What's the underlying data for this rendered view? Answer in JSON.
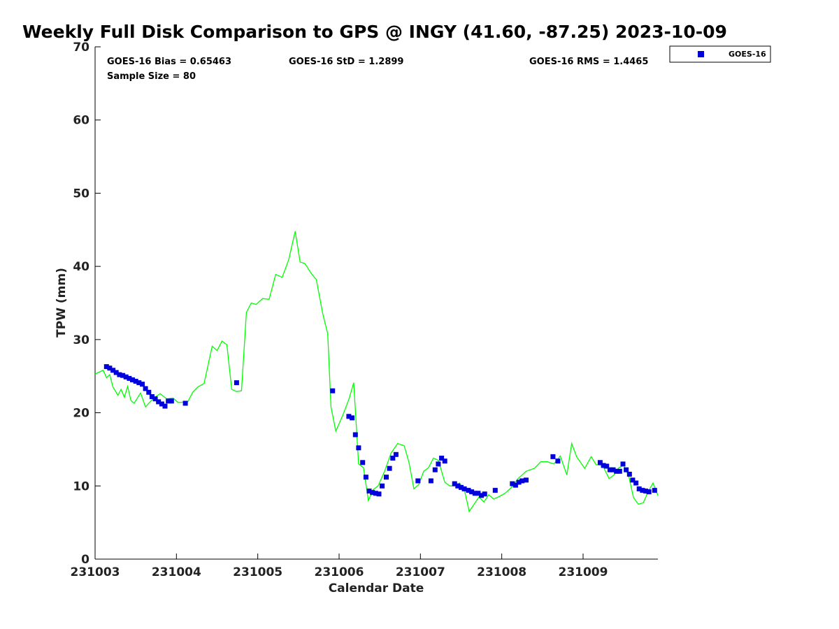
{
  "chart_data": {
    "type": "scatter",
    "title": "Weekly Full Disk Comparison to GPS @ INGY (41.60, -87.25) 2023-10-09",
    "xlabel": "Calendar Date",
    "ylabel": "TPW (mm)",
    "xlim": [
      231003,
      231009.92
    ],
    "ylim": [
      0,
      70
    ],
    "x_ticks": [
      231003,
      231004,
      231005,
      231006,
      231007,
      231008,
      231009
    ],
    "x_tick_labels": [
      "231003",
      "231004",
      "231005",
      "231006",
      "231007",
      "231008",
      "231009"
    ],
    "y_ticks": [
      0,
      10,
      20,
      30,
      40,
      50,
      60,
      70
    ],
    "grid": false,
    "legend_position": "top-right",
    "stats": {
      "bias": "GOES-16 Bias = 0.65463",
      "std": "GOES-16 StD = 1.2899",
      "rms": "GOES-16 RMS = 1.4465",
      "sample": "Sample Size = 80"
    },
    "series": [
      {
        "name": "GOES-16",
        "marker": "square",
        "color": "#0000dd",
        "x": [
          231003.14,
          231003.18,
          231003.22,
          231003.26,
          231003.3,
          231003.34,
          231003.38,
          231003.42,
          231003.46,
          231003.5,
          231003.54,
          231003.58,
          231003.62,
          231003.66,
          231003.7,
          231003.74,
          231003.78,
          231003.82,
          231003.86,
          231003.9,
          231003.94,
          231004.11,
          231004.74,
          231005.92,
          231006.12,
          231006.16,
          231006.2,
          231006.24,
          231006.29,
          231006.33,
          231006.37,
          231006.41,
          231006.45,
          231006.49,
          231006.53,
          231006.58,
          231006.62,
          231006.66,
          231006.7,
          231006.97,
          231007.13,
          231007.18,
          231007.22,
          231007.26,
          231007.3,
          231007.42,
          231007.46,
          231007.5,
          231007.54,
          231007.59,
          231007.63,
          231007.67,
          231007.71,
          231007.75,
          231007.79,
          231007.92,
          231008.13,
          231008.17,
          231008.21,
          231008.25,
          231008.3,
          231008.63,
          231008.69,
          231009.21,
          231009.25,
          231009.29,
          231009.33,
          231009.37,
          231009.41,
          231009.45,
          231009.49,
          231009.53,
          231009.57,
          231009.61,
          231009.65,
          231009.69,
          231009.73,
          231009.77,
          231009.81,
          231009.88
        ],
        "y": [
          26.3,
          26.1,
          25.8,
          25.5,
          25.2,
          25.1,
          24.9,
          24.7,
          24.5,
          24.3,
          24.1,
          23.9,
          23.3,
          22.8,
          22.2,
          21.9,
          21.5,
          21.2,
          20.9,
          21.6,
          21.6,
          21.3,
          24.1,
          23.0,
          19.5,
          19.3,
          17.0,
          15.2,
          13.2,
          11.2,
          9.3,
          9.1,
          9.0,
          8.9,
          10.0,
          11.2,
          12.4,
          13.8,
          14.3,
          10.7,
          10.7,
          12.2,
          13.0,
          13.8,
          13.4,
          10.3,
          10.0,
          9.8,
          9.6,
          9.4,
          9.2,
          9.0,
          9.0,
          8.7,
          8.9,
          9.4,
          10.3,
          10.1,
          10.5,
          10.7,
          10.8,
          14.0,
          13.4,
          13.2,
          12.8,
          12.7,
          12.2,
          12.2,
          12.0,
          12.0,
          13.0,
          12.2,
          11.6,
          10.8,
          10.4,
          9.6,
          9.4,
          9.3,
          9.2,
          9.4
        ]
      },
      {
        "name": "",
        "color": "#00ff00",
        "x": [
          231003.0,
          231003.1,
          231003.14,
          231003.18,
          231003.22,
          231003.28,
          231003.32,
          231003.36,
          231003.4,
          231003.44,
          231003.48,
          231003.56,
          231003.62,
          231003.72,
          231003.8,
          231003.88,
          231003.96,
          231004.02,
          231004.14,
          231004.2,
          231004.26,
          231004.34,
          231004.44,
          231004.5,
          231004.56,
          231004.62,
          231004.68,
          231004.74,
          231004.8,
          231004.86,
          231004.92,
          231004.98,
          231005.06,
          231005.14,
          231005.22,
          231005.3,
          231005.38,
          231005.46,
          231005.52,
          231005.58,
          231005.66,
          231005.72,
          231005.8,
          231005.86,
          231005.9,
          231005.96,
          231006.04,
          231006.12,
          231006.18,
          231006.24,
          231006.3,
          231006.36,
          231006.42,
          231006.48,
          231006.56,
          231006.64,
          231006.72,
          231006.8,
          231006.86,
          231006.92,
          231006.98,
          231007.04,
          231007.1,
          231007.16,
          231007.22,
          231007.3,
          231007.36,
          231007.42,
          231007.48,
          231007.54,
          231007.6,
          231007.66,
          231007.72,
          231007.78,
          231007.84,
          231007.9,
          231007.96,
          231008.04,
          231008.12,
          231008.2,
          231008.3,
          231008.4,
          231008.48,
          231008.56,
          231008.64,
          231008.72,
          231008.8,
          231008.86,
          231008.92,
          231009.02,
          231009.1,
          231009.16,
          231009.24,
          231009.32,
          231009.38,
          231009.44,
          231009.5,
          231009.56,
          231009.62,
          231009.68,
          231009.74,
          231009.8,
          231009.86,
          231009.92
        ],
        "y": [
          25.3,
          25.8,
          24.8,
          25.2,
          23.5,
          22.4,
          23.2,
          22.1,
          23.6,
          21.7,
          21.3,
          22.7,
          20.8,
          22.0,
          22.6,
          21.9,
          22.0,
          21.4,
          21.5,
          22.8,
          23.5,
          24.0,
          29.1,
          28.5,
          29.8,
          29.3,
          23.2,
          22.9,
          23.0,
          33.7,
          35.0,
          34.8,
          35.6,
          35.5,
          38.9,
          38.5,
          40.9,
          44.8,
          40.6,
          40.4,
          39.0,
          38.2,
          33.5,
          30.8,
          20.8,
          17.5,
          19.5,
          21.8,
          24.1,
          13.0,
          12.5,
          8.0,
          9.5,
          10.0,
          12.0,
          14.5,
          15.8,
          15.5,
          13.2,
          9.6,
          10.2,
          12.0,
          12.5,
          13.8,
          13.5,
          10.5,
          10.0,
          10.0,
          10.4,
          9.5,
          6.5,
          7.5,
          8.5,
          7.8,
          8.8,
          8.2,
          8.5,
          9.0,
          9.8,
          11.0,
          12.0,
          12.4,
          13.3,
          13.3,
          13.0,
          14.1,
          11.5,
          15.8,
          14.0,
          12.4,
          14.0,
          12.9,
          12.8,
          11.0,
          11.5,
          12.5,
          12.8,
          11.4,
          8.4,
          7.5,
          7.7,
          9.2,
          10.4,
          8.7
        ]
      }
    ],
    "legend": [
      {
        "label": "GOES-16",
        "marker": "square",
        "color": "#0000dd"
      }
    ]
  }
}
